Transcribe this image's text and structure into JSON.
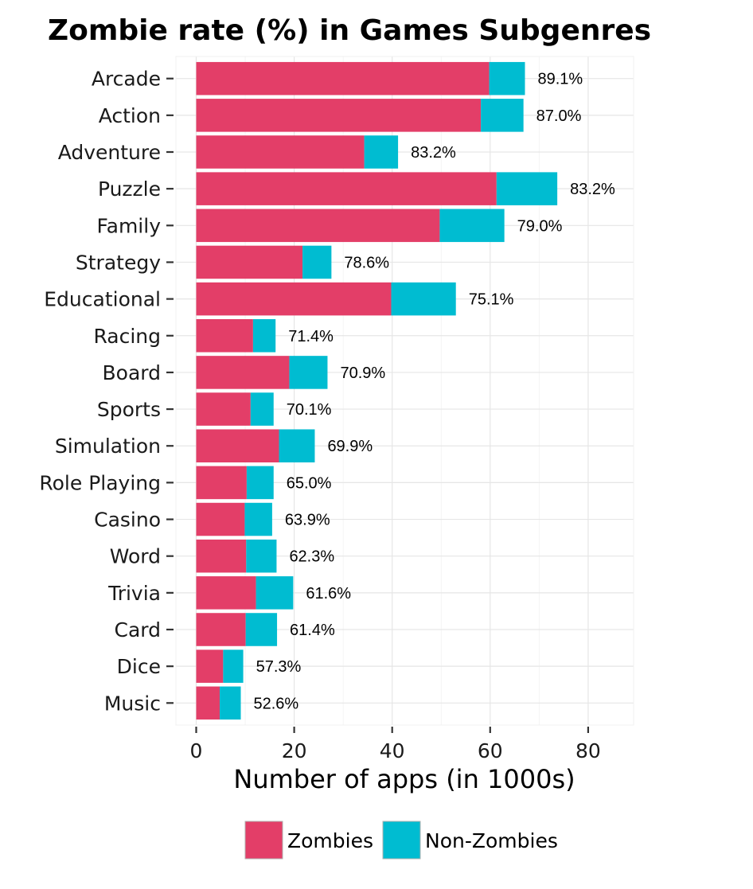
{
  "chart_data": {
    "type": "bar",
    "orientation": "horizontal",
    "stacked": true,
    "title": "Zombie rate (%) in Games Subgenres",
    "xlabel": "Number of apps (in 1000s)",
    "ylabel": "",
    "xlim": [
      -4,
      89
    ],
    "x_ticks": [
      "0",
      "20",
      "40",
      "60",
      "80"
    ],
    "grid": true,
    "legend_position": "bottom",
    "colors": {
      "zombies": "#e33e68",
      "non_zombies": "#00bcd1"
    },
    "categories": [
      "Arcade",
      "Action",
      "Adventure",
      "Puzzle",
      "Family",
      "Strategy",
      "Educational",
      "Racing",
      "Board",
      "Sports",
      "Simulation",
      "Role Playing",
      "Casino",
      "Word",
      "Trivia",
      "Card",
      "Dice",
      "Music"
    ],
    "series": [
      {
        "name": "Zombies",
        "values": [
          59.8,
          58.1,
          34.3,
          61.3,
          49.7,
          21.7,
          39.8,
          11.6,
          19.0,
          11.1,
          16.9,
          10.3,
          9.9,
          10.2,
          12.2,
          10.1,
          5.5,
          4.8
        ]
      },
      {
        "name": "Non-Zombies",
        "values": [
          7.3,
          8.7,
          6.9,
          12.4,
          13.2,
          5.9,
          13.2,
          4.6,
          7.8,
          4.7,
          7.3,
          5.5,
          5.6,
          6.2,
          7.6,
          6.4,
          4.1,
          4.3
        ]
      }
    ],
    "rate_labels": [
      "89.1%",
      "87.0%",
      "83.2%",
      "83.2%",
      "79.0%",
      "78.6%",
      "75.1%",
      "71.4%",
      "70.9%",
      "70.1%",
      "69.9%",
      "65.0%",
      "63.9%",
      "62.3%",
      "61.6%",
      "61.4%",
      "57.3%",
      "52.6%"
    ]
  }
}
